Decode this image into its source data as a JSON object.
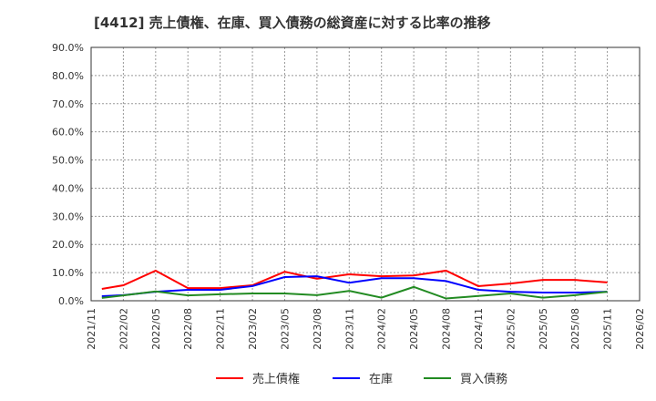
{
  "chart_data": {
    "type": "line",
    "title": "[4412]  売上債権、在庫、買入債務の総資産に対する比率の推移",
    "xlabel": "",
    "ylabel": "",
    "ylim": [
      0,
      90
    ],
    "yticks": [
      "0.0%",
      "10.0%",
      "20.0%",
      "30.0%",
      "40.0%",
      "50.0%",
      "60.0%",
      "70.0%",
      "80.0%",
      "90.0%"
    ],
    "xticks": [
      "2021/11",
      "2022/02",
      "2022/05",
      "2022/08",
      "2022/11",
      "2023/02",
      "2023/05",
      "2023/08",
      "2023/11",
      "2024/02",
      "2024/05",
      "2024/08",
      "2024/11",
      "2025/02",
      "2025/05",
      "2025/08",
      "2025/11",
      "2026/02"
    ],
    "x": [
      "2021/12",
      "2022/02",
      "2022/05",
      "2022/08",
      "2022/11",
      "2023/02",
      "2023/05",
      "2023/08",
      "2023/11",
      "2024/02",
      "2024/05",
      "2024/08",
      "2024/11",
      "2025/02",
      "2025/05",
      "2025/08",
      "2025/11"
    ],
    "grid": true,
    "legend_position": "bottom",
    "series": [
      {
        "name": "売上債権",
        "color": "#ff0000",
        "values": [
          4.2,
          5.5,
          10.7,
          4.5,
          4.5,
          5.5,
          10.3,
          7.8,
          9.4,
          8.7,
          9.0,
          10.7,
          5.2,
          6.1,
          7.4,
          7.4,
          6.5
        ]
      },
      {
        "name": "在庫",
        "color": "#0000ff",
        "values": [
          1.6,
          2.0,
          3.2,
          3.9,
          3.9,
          5.2,
          8.4,
          8.7,
          6.4,
          8.0,
          8.0,
          7.0,
          3.9,
          3.2,
          2.9,
          2.9,
          3.2
        ]
      },
      {
        "name": "買入債務",
        "color": "#228b22",
        "values": [
          1.0,
          1.9,
          3.3,
          1.9,
          2.3,
          2.6,
          2.6,
          2.0,
          3.5,
          1.1,
          4.9,
          0.8,
          1.7,
          2.6,
          1.1,
          2.0,
          3.2
        ]
      }
    ]
  }
}
